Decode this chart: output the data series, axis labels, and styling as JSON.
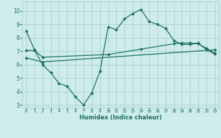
{
  "bg_color": "#ceecea",
  "grid_color": "#aed4d2",
  "line_color": "#1a6e65",
  "xlabel": "Humidex (Indice chaleur)",
  "xlim": [
    -0.5,
    23.5
  ],
  "ylim": [
    2.8,
    10.7
  ],
  "xticks": [
    0,
    1,
    2,
    3,
    4,
    5,
    6,
    7,
    8,
    9,
    10,
    11,
    12,
    13,
    14,
    15,
    16,
    17,
    18,
    19,
    20,
    21,
    22,
    23
  ],
  "yticks": [
    3,
    4,
    5,
    6,
    7,
    8,
    9,
    10
  ],
  "line1_x": [
    0,
    1,
    2,
    3,
    4,
    5,
    6,
    7,
    8,
    9,
    10,
    11,
    12,
    13,
    14,
    15,
    16,
    17,
    18,
    19,
    20,
    21,
    22,
    23
  ],
  "line1_y": [
    8.5,
    7.1,
    6.0,
    5.4,
    4.6,
    4.4,
    3.6,
    3.0,
    3.9,
    5.5,
    8.8,
    8.6,
    9.4,
    9.8,
    10.1,
    9.2,
    9.0,
    8.7,
    7.8,
    7.5,
    7.5,
    7.6,
    7.1,
    6.8
  ],
  "line2_x": [
    0,
    1,
    2,
    10,
    14,
    18,
    19,
    20,
    21,
    22,
    23
  ],
  "line2_y": [
    7.05,
    7.05,
    6.55,
    6.75,
    7.15,
    7.55,
    7.6,
    7.6,
    7.55,
    7.2,
    6.85
  ],
  "line3_x": [
    0,
    2,
    23
  ],
  "line3_y": [
    6.5,
    6.2,
    7.1
  ],
  "marker_size": 2.5,
  "lw": 0.9
}
